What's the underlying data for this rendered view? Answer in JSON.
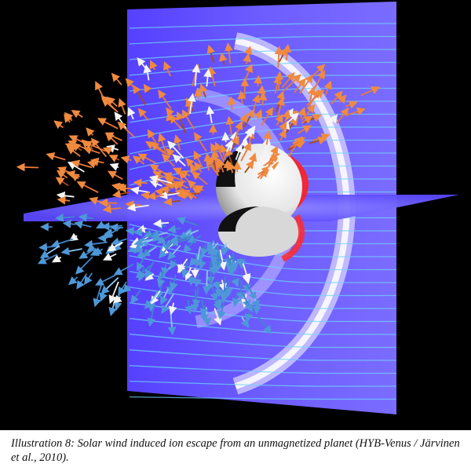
{
  "caption": {
    "text": "Illustration 8: Solar wind induced ion escape from an unmagnetized planet (HYB-Venus / Järvinen et al., 2010)."
  },
  "colors": {
    "background": "#000000",
    "plane": "#6b5cff",
    "field_lines": "#6fd3ff",
    "bow_shock": "#ffffff",
    "ionosphere": "#ff2a2a",
    "ions_upper": "#e8793a",
    "ions_lower": "#3f86c8",
    "planet": "#f2f2f2"
  }
}
